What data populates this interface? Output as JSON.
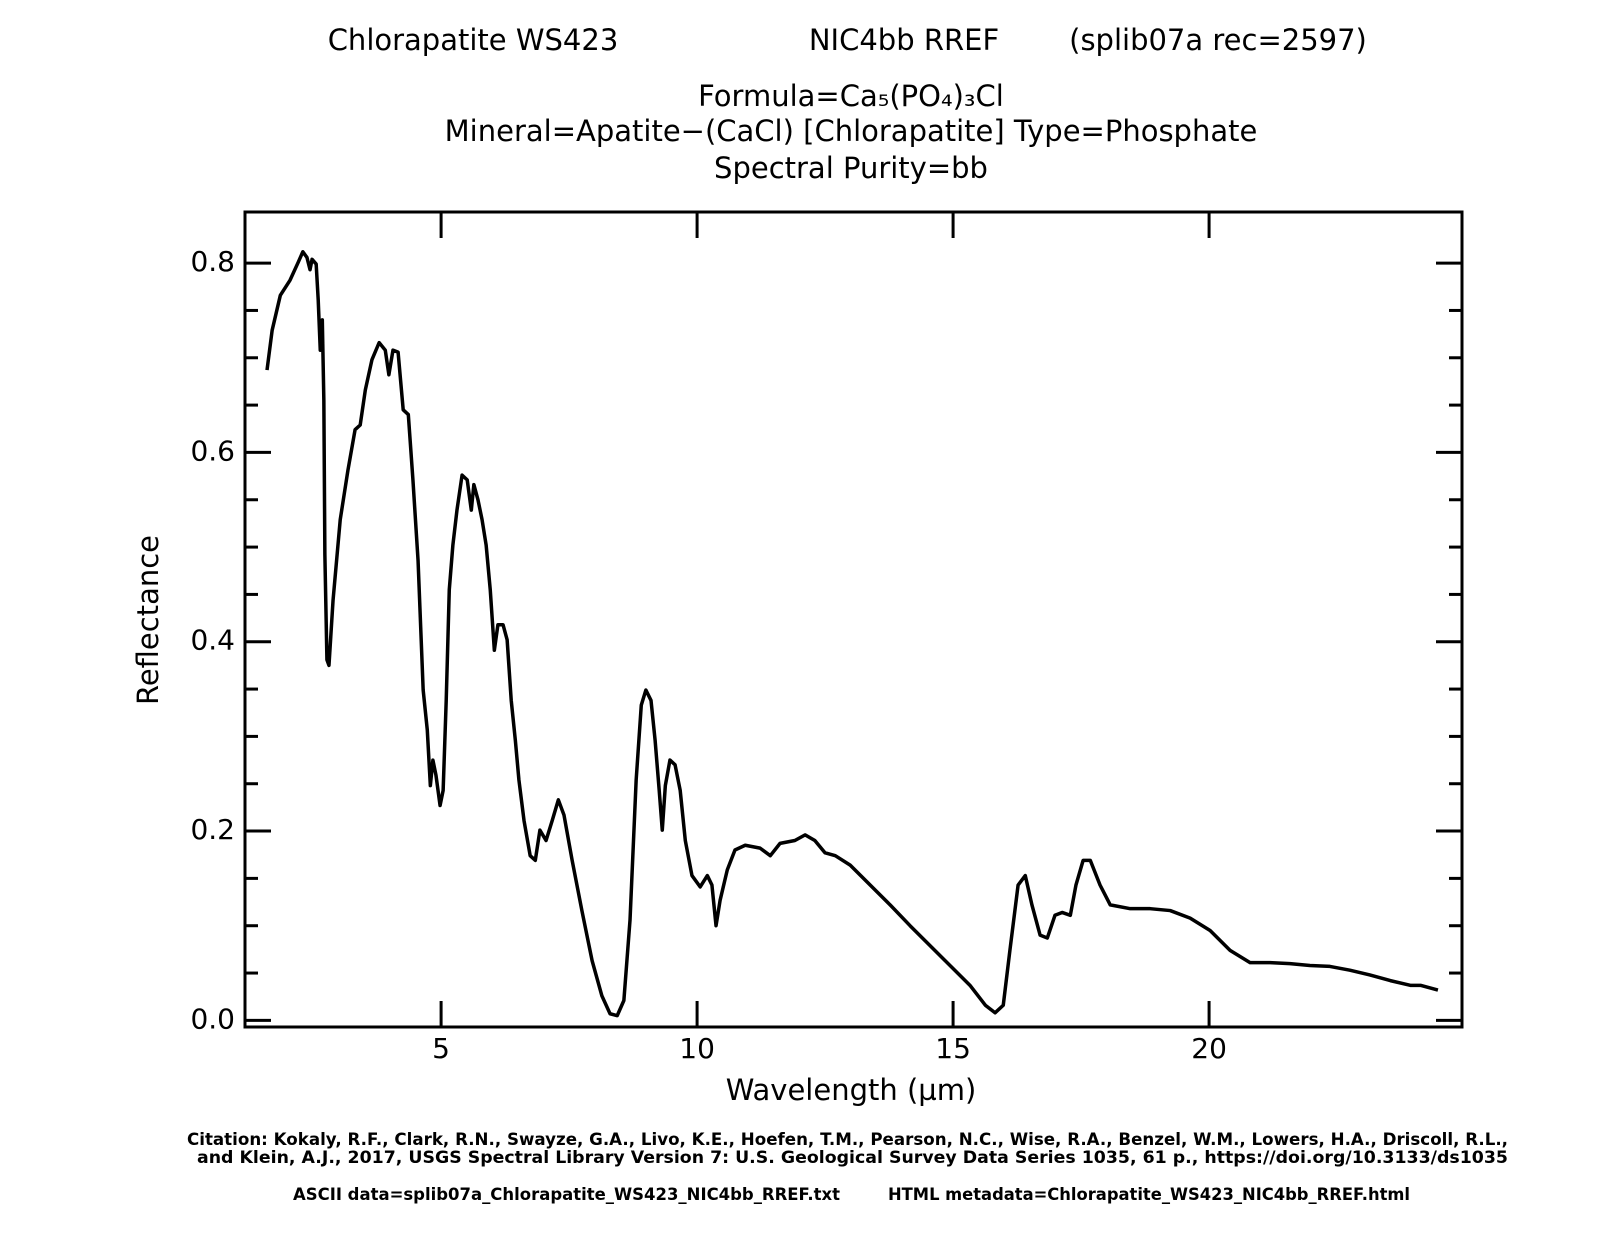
{
  "chart_data": {
    "type": "line",
    "title_parts": [
      "Chlorapatite WS423",
      "NIC4bb RREF",
      "(splib07a rec=2597)"
    ],
    "subtitle_lines": [
      "Formula=Ca₅(PO₄)₃Cl",
      "Mineral=Apatite−(CaCl) [Chlorapatite]  Type=Phosphate",
      "Spectral Purity=bb"
    ],
    "xlabel": "Wavelength (µm)",
    "ylabel": "Reflectance",
    "citation_lines": [
      "Citation: Kokaly, R.F., Clark, R.N., Swayze, G.A., Livo, K.E., Hoefen, T.M., Pearson, N.C., Wise, R.A., Benzel, W.M., Lowers, H.A., Driscoll, R.L.,",
      "and Klein, A.J., 2017, USGS Spectral Library Version 7: U.S. Geological Survey Data Series 1035, 61 p., https://doi.org/10.3133/ds1035"
    ],
    "file_lines": [
      "ASCII data=splib07a_Chlorapatite_WS423_NIC4bb_RREF.txt",
      "HTML metadata=Chlorapatite_WS423_NIC4bb_RREF.html"
    ],
    "color": "#000000",
    "xlim": [
      1.17,
      24.94
    ],
    "ylim": [
      -0.007,
      0.854
    ],
    "xticks": [
      5,
      10,
      15,
      20
    ],
    "yticks": [
      {
        "value": 0,
        "label": "0.0"
      },
      0.2,
      0.4,
      0.6,
      0.8
    ],
    "yminorticks": [
      0.05,
      0.1,
      0.15,
      0.25,
      0.3,
      0.35,
      0.45,
      0.5,
      0.55,
      0.65,
      0.7,
      0.75
    ],
    "x": [
      1.6,
      1.7,
      1.86,
      2.05,
      2.21,
      2.3,
      2.38,
      2.44,
      2.48,
      2.56,
      2.6,
      2.64,
      2.68,
      2.71,
      2.73,
      2.77,
      2.81,
      2.89,
      3.03,
      3.18,
      3.32,
      3.42,
      3.52,
      3.65,
      3.79,
      3.91,
      3.98,
      4.06,
      4.16,
      4.26,
      4.36,
      4.45,
      4.55,
      4.65,
      4.73,
      4.79,
      4.84,
      4.9,
      4.98,
      5.04,
      5.1,
      5.16,
      5.23,
      5.31,
      5.41,
      5.51,
      5.59,
      5.64,
      5.72,
      5.8,
      5.88,
      5.96,
      6.04,
      6.11,
      6.21,
      6.29,
      6.37,
      6.45,
      6.52,
      6.62,
      6.74,
      6.84,
      6.93,
      7.05,
      7.17,
      7.29,
      7.4,
      7.56,
      7.75,
      7.95,
      8.14,
      8.3,
      8.44,
      8.57,
      8.69,
      8.81,
      8.91,
      9.0,
      9.1,
      9.18,
      9.26,
      9.32,
      9.38,
      9.47,
      9.57,
      9.67,
      9.77,
      9.9,
      10.06,
      10.2,
      10.29,
      10.37,
      10.45,
      10.59,
      10.74,
      10.94,
      11.23,
      11.43,
      11.62,
      11.91,
      12.11,
      12.3,
      12.5,
      12.7,
      12.99,
      13.38,
      13.77,
      14.16,
      14.55,
      14.94,
      15.33,
      15.63,
      15.82,
      15.98,
      16.11,
      16.27,
      16.41,
      16.54,
      16.7,
      16.84,
      16.99,
      17.13,
      17.29,
      17.4,
      17.54,
      17.68,
      17.87,
      18.07,
      18.46,
      18.85,
      19.24,
      19.63,
      20.02,
      20.41,
      20.8,
      21.19,
      21.58,
      21.97,
      22.36,
      22.75,
      23.14,
      23.54,
      23.93,
      24.13,
      24.47
    ],
    "values": [
      0.687,
      0.729,
      0.766,
      0.782,
      0.801,
      0.812,
      0.806,
      0.793,
      0.804,
      0.799,
      0.761,
      0.708,
      0.74,
      0.655,
      0.492,
      0.381,
      0.375,
      0.444,
      0.529,
      0.581,
      0.624,
      0.629,
      0.666,
      0.698,
      0.716,
      0.708,
      0.682,
      0.708,
      0.706,
      0.645,
      0.64,
      0.571,
      0.486,
      0.349,
      0.307,
      0.248,
      0.275,
      0.259,
      0.227,
      0.243,
      0.338,
      0.455,
      0.502,
      0.539,
      0.576,
      0.571,
      0.539,
      0.566,
      0.55,
      0.529,
      0.502,
      0.455,
      0.391,
      0.418,
      0.418,
      0.402,
      0.338,
      0.296,
      0.254,
      0.211,
      0.174,
      0.169,
      0.201,
      0.19,
      0.211,
      0.233,
      0.217,
      0.169,
      0.116,
      0.063,
      0.026,
      0.007,
      0.005,
      0.021,
      0.106,
      0.254,
      0.333,
      0.349,
      0.338,
      0.296,
      0.243,
      0.201,
      0.248,
      0.275,
      0.27,
      0.243,
      0.19,
      0.153,
      0.141,
      0.153,
      0.143,
      0.1,
      0.127,
      0.159,
      0.18,
      0.185,
      0.182,
      0.174,
      0.187,
      0.19,
      0.196,
      0.19,
      0.177,
      0.174,
      0.164,
      0.143,
      0.122,
      0.1,
      0.079,
      0.058,
      0.037,
      0.016,
      0.008,
      0.016,
      0.074,
      0.143,
      0.153,
      0.122,
      0.09,
      0.087,
      0.111,
      0.114,
      0.111,
      0.143,
      0.169,
      0.169,
      0.143,
      0.122,
      0.118,
      0.118,
      0.116,
      0.108,
      0.095,
      0.074,
      0.061,
      0.061,
      0.06,
      0.058,
      0.057,
      0.053,
      0.048,
      0.042,
      0.037,
      0.037,
      0.032
    ]
  }
}
